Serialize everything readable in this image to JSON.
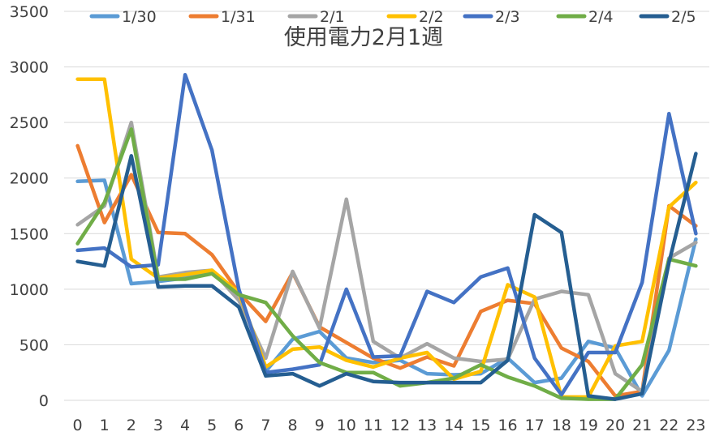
{
  "chart_data": {
    "type": "line",
    "title": "使用電力2月1週",
    "xlabel": "",
    "ylabel": "",
    "ylim": [
      0,
      3500
    ],
    "yticks": [
      0,
      500,
      1000,
      1500,
      2000,
      2500,
      3000,
      3500
    ],
    "grid": true,
    "legend_position": "top",
    "categories": [
      "0",
      "1",
      "2",
      "3",
      "4",
      "5",
      "6",
      "7",
      "8",
      "9",
      "10",
      "11",
      "12",
      "13",
      "14",
      "15",
      "16",
      "17",
      "18",
      "19",
      "20",
      "21",
      "22",
      "23"
    ],
    "series": [
      {
        "name": "1/30",
        "color": "#5b9bd5",
        "values": [
          1970,
          1980,
          1050,
          1070,
          1100,
          1150,
          980,
          260,
          550,
          620,
          380,
          340,
          360,
          240,
          230,
          240,
          380,
          160,
          200,
          530,
          470,
          40,
          450,
          1450
        ]
      },
      {
        "name": "1/31",
        "color": "#ed7d31",
        "values": [
          2290,
          1600,
          2030,
          1510,
          1500,
          1310,
          970,
          710,
          1150,
          660,
          520,
          380,
          290,
          390,
          310,
          800,
          900,
          870,
          470,
          350,
          40,
          80,
          1750,
          1570
        ]
      },
      {
        "name": "2/1",
        "color": "#a5a5a5",
        "values": [
          1580,
          1750,
          2500,
          1110,
          1150,
          1170,
          900,
          380,
          1160,
          650,
          1810,
          530,
          380,
          510,
          380,
          350,
          370,
          910,
          980,
          950,
          240,
          80,
          1280,
          1420
        ]
      },
      {
        "name": "2/2",
        "color": "#ffc000",
        "values": [
          2890,
          2890,
          1270,
          1100,
          1130,
          1170,
          970,
          300,
          460,
          480,
          360,
          300,
          380,
          430,
          190,
          260,
          1040,
          930,
          30,
          30,
          490,
          530,
          1740,
          1960
        ]
      },
      {
        "name": "2/3",
        "color": "#4472c4",
        "values": [
          1350,
          1370,
          1200,
          1220,
          2930,
          2250,
          1000,
          250,
          280,
          320,
          1000,
          390,
          400,
          980,
          880,
          1110,
          1190,
          380,
          50,
          430,
          430,
          1060,
          2580,
          1500
        ]
      },
      {
        "name": "2/4",
        "color": "#70ad47",
        "values": [
          1410,
          1780,
          2440,
          1090,
          1090,
          1140,
          950,
          880,
          580,
          340,
          250,
          250,
          130,
          160,
          200,
          320,
          210,
          130,
          20,
          10,
          10,
          320,
          1270,
          1210
        ]
      },
      {
        "name": "2/5",
        "color": "#255e91",
        "values": [
          1250,
          1210,
          2200,
          1020,
          1030,
          1030,
          840,
          220,
          240,
          130,
          240,
          170,
          160,
          160,
          160,
          160,
          360,
          1670,
          1510,
          40,
          10,
          60,
          1240,
          2220
        ]
      }
    ]
  }
}
